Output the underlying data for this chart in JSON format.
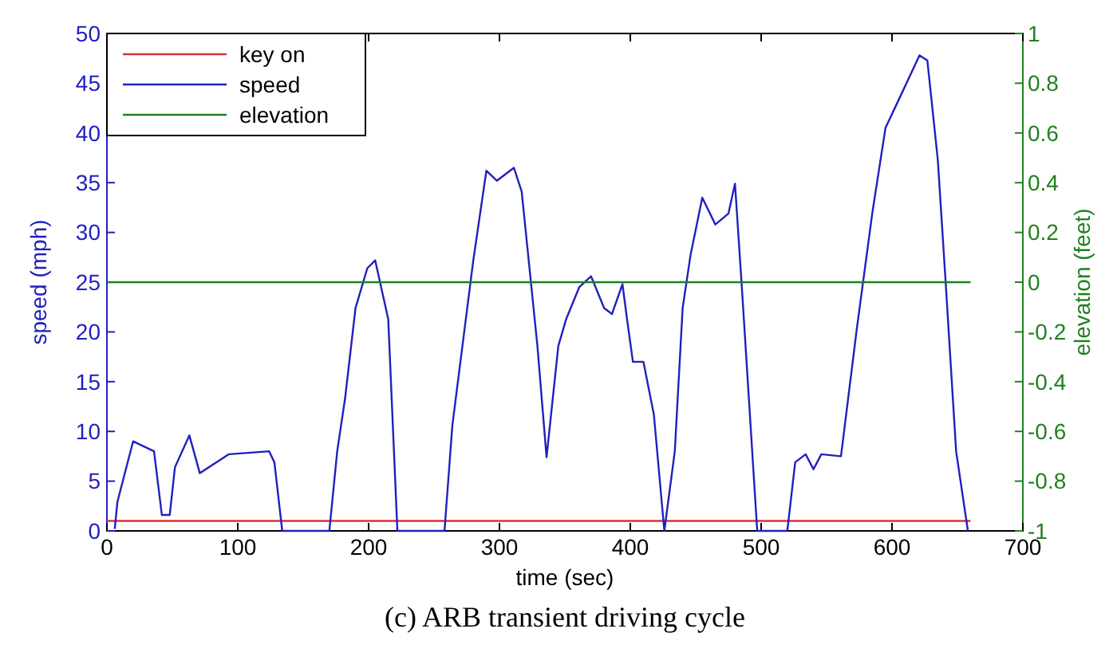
{
  "chart_data": {
    "type": "line",
    "xlabel": "time (sec)",
    "ylabel": "speed (mph)",
    "y2label": "elevation (feet)",
    "annotations": [
      "(c) ARB transient driving cycle"
    ],
    "xlim": [
      0,
      700
    ],
    "xticks": [
      0,
      100,
      200,
      300,
      400,
      500,
      600,
      700
    ],
    "ylim": [
      0,
      50
    ],
    "yticks": [
      0,
      5,
      10,
      15,
      20,
      25,
      30,
      35,
      40,
      45,
      50
    ],
    "y2lim": [
      -1,
      1
    ],
    "y2ticks": [
      -1,
      -0.8,
      -0.6,
      -0.4,
      -0.2,
      0,
      0.2,
      0.4,
      0.6,
      0.8,
      1
    ],
    "legend": "top left",
    "grid": false,
    "line_style": "solid",
    "marker": "none",
    "series": [
      {
        "name": "key on",
        "color": "#e03030",
        "x": [
          0,
          660
        ],
        "values": [
          1,
          1
        ]
      },
      {
        "name": "speed",
        "color": "#2020c0",
        "x": [
          6,
          8,
          20,
          36,
          42,
          48,
          52,
          63,
          71,
          93,
          124,
          128,
          134,
          170,
          176,
          182,
          190,
          199,
          205,
          215,
          222,
          258,
          264,
          280,
          290,
          298,
          311,
          317,
          329,
          336,
          345,
          351,
          361,
          370,
          380,
          386,
          394,
          398,
          402,
          410,
          418,
          426,
          434,
          440,
          446,
          455,
          465,
          475,
          480,
          485,
          497,
          520,
          526,
          534,
          540,
          546,
          561,
          573,
          585,
          595,
          605,
          621,
          627,
          635,
          641,
          649,
          658
        ],
        "values": [
          0.2,
          2.9,
          9,
          8,
          1.6,
          1.6,
          6.4,
          9.6,
          5.8,
          7.7,
          8,
          6.9,
          0,
          0,
          8,
          13.3,
          22.4,
          26.4,
          27.2,
          21.3,
          0,
          0,
          10.6,
          27.2,
          36.2,
          35.2,
          36.5,
          34.1,
          18.6,
          7.4,
          18.6,
          21.3,
          24.5,
          25.6,
          22.4,
          21.8,
          24.8,
          20.8,
          17,
          17,
          11.7,
          0,
          8,
          22.4,
          27.7,
          33.5,
          30.8,
          31.9,
          34.9,
          25,
          0,
          0,
          6.9,
          7.7,
          6.2,
          7.7,
          7.5,
          20.2,
          32,
          40.5,
          43.3,
          47.8,
          47.3,
          37.3,
          25,
          8,
          0
        ]
      },
      {
        "name": "elevation",
        "color": "#208020",
        "axis": "y2",
        "x": [
          0,
          660
        ],
        "values": [
          0,
          0
        ]
      }
    ]
  }
}
